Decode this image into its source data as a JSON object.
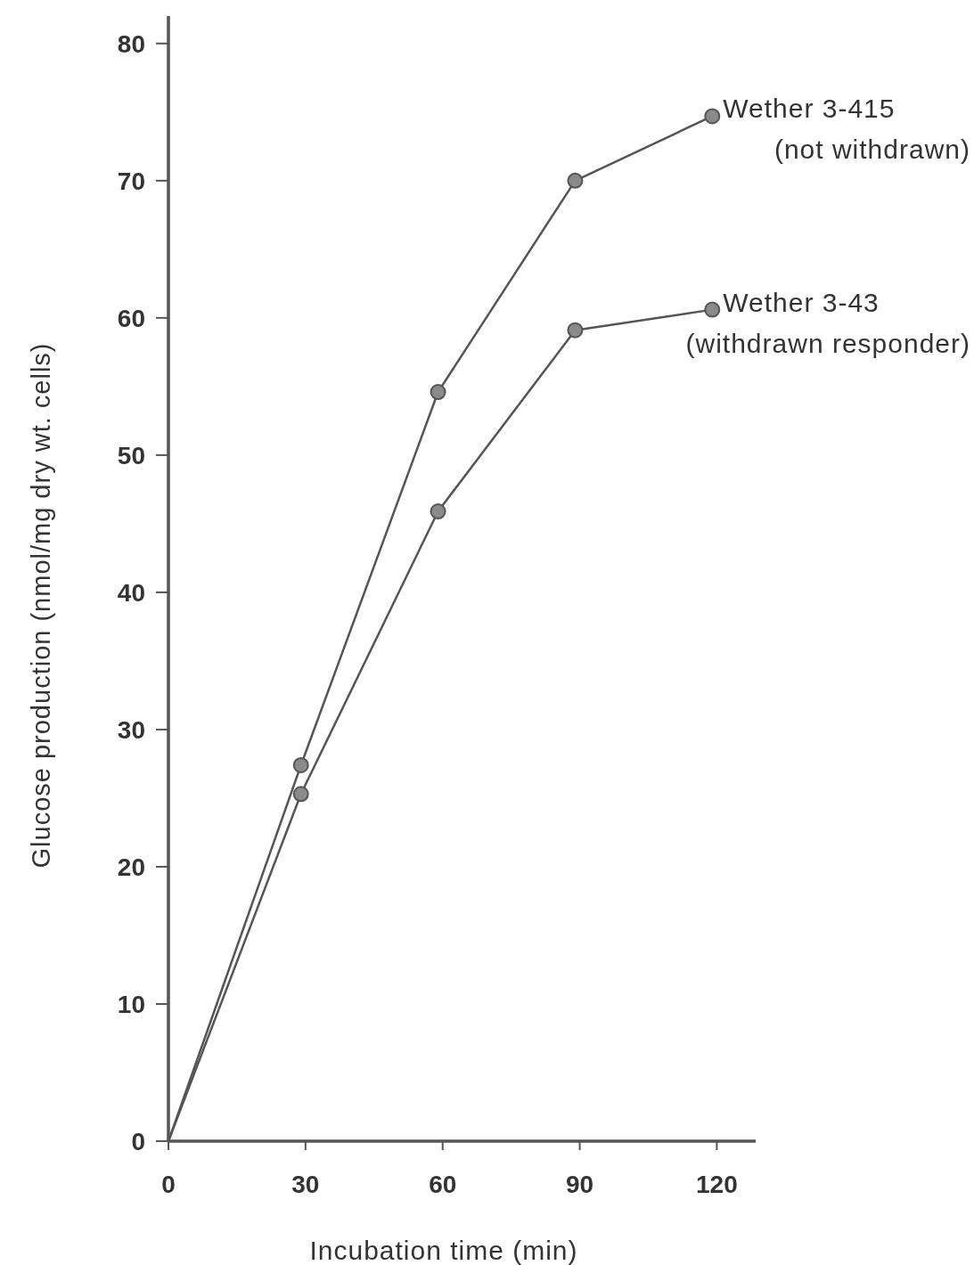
{
  "chart_data": {
    "type": "line",
    "xlabel": "Incubation time (min)",
    "ylabel": "Glucose production (nmol/mg dry wt. cells)",
    "xlim": [
      0,
      128.5
    ],
    "ylim": [
      0,
      82
    ],
    "xticks": [
      0,
      30,
      60,
      90,
      120
    ],
    "yticks": [
      0,
      10,
      20,
      30,
      40,
      50,
      60,
      70,
      80
    ],
    "grid": false,
    "marker": "circle",
    "line_style": "solid",
    "series": [
      {
        "name": "Wether 3-415 (not withdrawn)",
        "color": "#555555",
        "x": [
          0,
          29,
          59,
          89,
          119
        ],
        "values": [
          0,
          27.4,
          54.6,
          70.0,
          74.7
        ]
      },
      {
        "name": "Wether 3-43 (withdrawn responder)",
        "color": "#555555",
        "x": [
          0,
          29,
          59,
          89,
          119
        ],
        "values": [
          0,
          25.3,
          45.9,
          59.1,
          60.6
        ]
      }
    ]
  }
}
